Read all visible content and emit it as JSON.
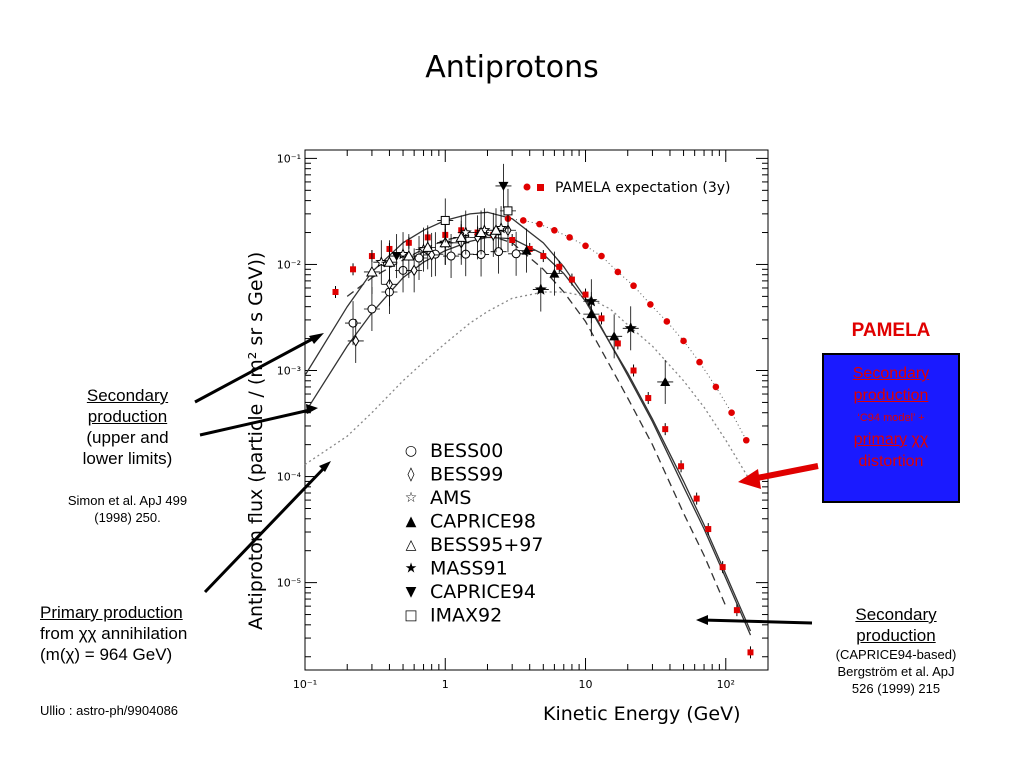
{
  "slide": {
    "title": "Antiprotons"
  },
  "annotations": {
    "secondary_left": {
      "line1": "Secondary",
      "line2": "production",
      "line3": "(upper and",
      "line4": "lower limits)",
      "ref1": "Simon et al. ApJ 499",
      "ref2": "(1998) 250."
    },
    "primary_left": {
      "line1": "Primary production",
      "line2": "from χχ annihilation",
      "line3": "(m(χ) = 964 GeV)",
      "ref": "Ullio : astro-ph/9904086"
    },
    "pamela": {
      "title": "PAMELA",
      "line1": "Secondary",
      "line2": "production",
      "line3": "‘C94 model’ +",
      "line4a": "primary",
      "line4b": " χχ",
      "line5": "distortion"
    },
    "secondary_right": {
      "line1": "Secondary",
      "line2": "production",
      "line3": "(CAPRICE94-based)",
      "line4": "Bergström et al. ApJ",
      "line5": "526 (1999) 215"
    }
  },
  "colors": {
    "pamela_red": "#e00000",
    "pamela_box": "#1a1aff"
  },
  "chart_data": {
    "type": "scatter",
    "xlabel": "Kinetic Energy (GeV)",
    "ylabel": "Antiproton flux (particle / (m² sr s GeV))",
    "xscale": "log",
    "yscale": "log",
    "xlim": [
      0.1,
      200
    ],
    "ylim": [
      1.5e-06,
      0.12
    ],
    "x_ticks": [
      {
        "v": 0.1,
        "label": "10⁻¹"
      },
      {
        "v": 1,
        "label": "1"
      },
      {
        "v": 10,
        "label": "10"
      },
      {
        "v": 100,
        "label": "10²"
      }
    ],
    "y_ticks": [
      {
        "v": 0.1,
        "label": "10⁻¹"
      },
      {
        "v": 0.01,
        "label": "10⁻²"
      },
      {
        "v": 0.001,
        "label": "10⁻³"
      },
      {
        "v": 0.0001,
        "label": "10⁻⁴"
      },
      {
        "v": 1e-05,
        "label": "10⁻⁵"
      }
    ],
    "legend_top": "PAMELA expectation (3y)",
    "legend": [
      {
        "name": "BESS00",
        "marker": "○"
      },
      {
        "name": "BESS99",
        "marker": "◊"
      },
      {
        "name": "AMS",
        "marker": "☆"
      },
      {
        "name": "CAPRICE98",
        "marker": "▲"
      },
      {
        "name": "BESS95+97",
        "marker": "△"
      },
      {
        "name": "MASS91",
        "marker": "★"
      },
      {
        "name": "CAPRICE94",
        "marker": "▼"
      },
      {
        "name": "IMAX92",
        "marker": "□"
      }
    ],
    "series": [
      {
        "name": "Secondary production upper limit",
        "style": "solid",
        "x": [
          0.1,
          0.2,
          0.3,
          0.5,
          0.7,
          1,
          1.5,
          2,
          3,
          5,
          7,
          10,
          15,
          20,
          30,
          50,
          70,
          100,
          150
        ],
        "y": [
          0.0009,
          0.004,
          0.0085,
          0.016,
          0.021,
          0.026,
          0.03,
          0.031,
          0.027,
          0.016,
          0.0095,
          0.0048,
          0.0018,
          0.0009,
          0.00033,
          8e-05,
          3.2e-05,
          1.1e-05,
          3.2e-06
        ]
      },
      {
        "name": "Secondary production lower limit",
        "style": "solid",
        "x": [
          0.1,
          0.2,
          0.3,
          0.5,
          0.7,
          1,
          1.5,
          2,
          3,
          5,
          7,
          10,
          15,
          20,
          30,
          50,
          70,
          100,
          150
        ],
        "y": [
          0.0004,
          0.0017,
          0.0035,
          0.0075,
          0.0105,
          0.0135,
          0.0165,
          0.018,
          0.0175,
          0.0125,
          0.0082,
          0.0045,
          0.0018,
          0.00095,
          0.00035,
          9e-05,
          3.5e-05,
          1.2e-05,
          3.5e-06
        ]
      },
      {
        "name": "Secondary production (CAPRICE94-based)",
        "style": "dashed",
        "x": [
          0.2,
          0.3,
          0.5,
          0.7,
          1,
          1.5,
          2,
          3,
          5,
          7,
          10,
          15,
          20,
          30,
          50,
          70,
          100
        ],
        "y": [
          0.005,
          0.0075,
          0.011,
          0.014,
          0.017,
          0.019,
          0.019,
          0.016,
          0.009,
          0.0055,
          0.0029,
          0.0011,
          0.00055,
          0.0002,
          4.5e-05,
          1.8e-05,
          6e-06
        ]
      },
      {
        "name": "Primary production",
        "style": "dotted",
        "x": [
          0.1,
          0.2,
          0.3,
          0.5,
          0.7,
          1,
          1.5,
          2,
          3,
          5,
          7,
          10,
          15,
          20,
          30,
          50,
          70,
          100,
          150
        ],
        "y": [
          0.00013,
          0.00024,
          0.0004,
          0.0008,
          0.0012,
          0.0018,
          0.0028,
          0.0036,
          0.0048,
          0.0055,
          0.0055,
          0.005,
          0.0038,
          0.0027,
          0.0017,
          0.0008,
          0.00045,
          0.00022,
          9e-05
        ]
      },
      {
        "name": "PAMELA expectation (3y)",
        "style": "red-markers",
        "x": [
          0.165,
          0.22,
          0.3,
          0.4,
          0.55,
          0.75,
          1,
          1.3,
          1.7,
          2.2,
          3,
          4,
          5,
          6.5,
          8,
          10,
          13,
          17,
          22,
          28,
          37,
          48,
          62,
          75,
          95,
          120,
          150
        ],
        "y": [
          0.0055,
          0.009,
          0.012,
          0.014,
          0.016,
          0.018,
          0.019,
          0.021,
          0.02,
          0.019,
          0.017,
          0.014,
          0.012,
          0.0095,
          0.0072,
          0.0052,
          0.0031,
          0.0018,
          0.001,
          0.00055,
          0.00028,
          0.000125,
          6.2e-05,
          3.2e-05,
          1.4e-05,
          5.5e-06,
          2.2e-06
        ]
      },
      {
        "name": "PAMELA expectation dots",
        "style": "red-dots",
        "x": [
          2.8,
          3.6,
          4.7,
          6.0,
          7.7,
          10,
          13,
          17,
          22,
          29,
          38,
          50,
          65,
          85,
          110,
          140
        ],
        "y": [
          0.027,
          0.026,
          0.024,
          0.021,
          0.018,
          0.015,
          0.012,
          0.0085,
          0.0063,
          0.0042,
          0.0029,
          0.0019,
          0.0012,
          0.0007,
          0.0004,
          0.00022
        ]
      },
      {
        "name": "BESS00",
        "marker": "circle",
        "x": [
          0.22,
          0.3,
          0.4,
          0.5,
          0.65,
          0.85,
          1.1,
          1.4,
          1.8,
          2.4,
          3.2
        ],
        "y": [
          0.0028,
          0.0038,
          0.0055,
          0.0088,
          0.0115,
          0.0125,
          0.012,
          0.0125,
          0.0124,
          0.0132,
          0.0126
        ]
      },
      {
        "name": "BESS99",
        "marker": "diamond",
        "x": [
          0.23,
          0.4,
          0.6,
          0.8,
          1.0,
          1.3,
          1.7,
          2.2,
          2.8
        ],
        "y": [
          0.0019,
          0.0065,
          0.0088,
          0.0123,
          0.016,
          0.016,
          0.018,
          0.019,
          0.021
        ]
      },
      {
        "name": "AMS",
        "marker": "star-open",
        "x": [
          0.35,
          0.5,
          0.7,
          1.0,
          1.4,
          1.9,
          2.5
        ],
        "y": [
          0.0105,
          0.0125,
          0.0138,
          0.016,
          0.02,
          0.021,
          0.022
        ]
      },
      {
        "name": "CAPRICE98",
        "marker": "triangle-up",
        "x": [
          3.8,
          6.0,
          11,
          16,
          37
        ],
        "y": [
          0.0135,
          0.0082,
          0.0034,
          0.0021,
          0.00078
        ]
      },
      {
        "name": "BESS95+97",
        "marker": "triangle-open",
        "x": [
          0.3,
          0.4,
          0.55,
          0.75,
          1.0,
          1.3,
          1.8,
          2.3
        ],
        "y": [
          0.0085,
          0.0105,
          0.012,
          0.0145,
          0.016,
          0.018,
          0.02,
          0.021
        ]
      },
      {
        "name": "MASS91",
        "marker": "star",
        "x": [
          4.8,
          11,
          21
        ],
        "y": [
          0.0058,
          0.0045,
          0.0025
        ]
      },
      {
        "name": "CAPRICE94",
        "marker": "triangle-down",
        "x": [
          0.45,
          2.6
        ],
        "y": [
          0.012,
          0.055
        ]
      },
      {
        "name": "IMAX92",
        "marker": "square",
        "x": [
          1.0,
          2.8
        ],
        "y": [
          0.026,
          0.032
        ]
      }
    ]
  }
}
